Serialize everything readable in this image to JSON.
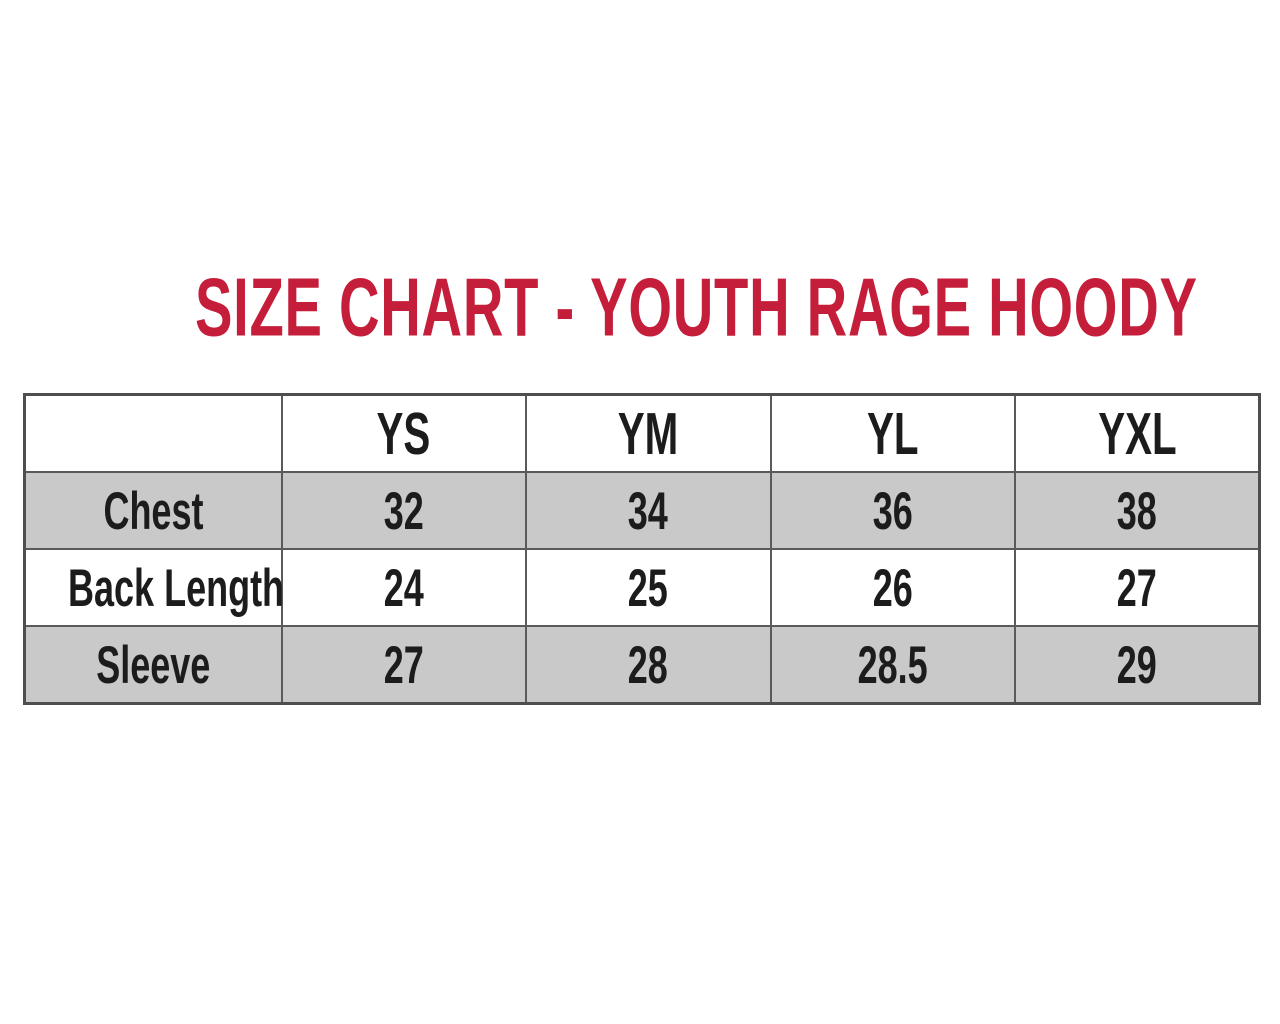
{
  "title": {
    "text": "SIZE CHART - YOUTH RAGE HOODY"
  },
  "colors": {
    "title_red": "#c41e3a",
    "row_shade": "#c9c9c9",
    "header_bg": "#ffffff",
    "border_outer": "#4e4e50",
    "border_inner": "#5a5a5c",
    "cell_text": "#1c1c1c"
  },
  "table": {
    "columns": [
      "",
      "YS",
      "YM",
      "YL",
      "YXL"
    ],
    "rows": [
      {
        "label": "Chest",
        "values": [
          "32",
          "34",
          "36",
          "38"
        ]
      },
      {
        "label": "Back Length",
        "values": [
          "24",
          "25",
          "26",
          "27"
        ]
      },
      {
        "label": "Sleeve",
        "values": [
          "27",
          "28",
          "28.5",
          "29"
        ]
      }
    ]
  },
  "chart_data": {
    "type": "table",
    "title": "SIZE CHART - YOUTH RAGE HOODY",
    "columns": [
      "",
      "YS",
      "YM",
      "YL",
      "YXL"
    ],
    "rows": [
      [
        "Chest",
        32,
        34,
        36,
        38
      ],
      [
        "Back Length",
        24,
        25,
        26,
        27
      ],
      [
        "Sleeve",
        27,
        28,
        28.5,
        29
      ]
    ],
    "shaded_rows": [
      "Chest",
      "Sleeve"
    ],
    "legend_position": "none",
    "grid": true
  }
}
